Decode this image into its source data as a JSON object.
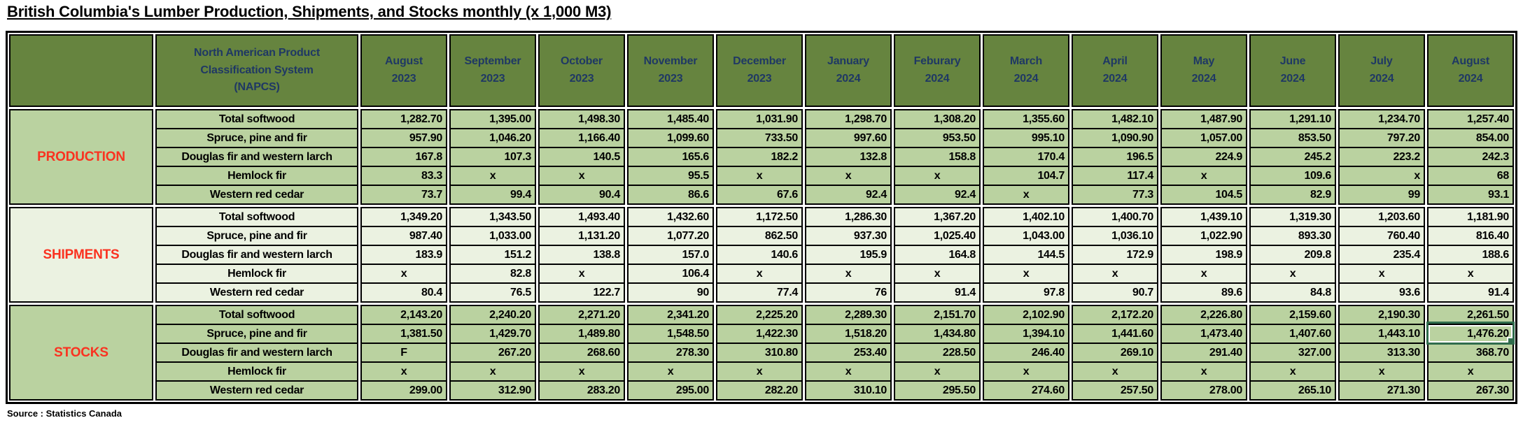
{
  "title": "British Columbia's Lumber Production, Shipments, and Stocks monthly (x 1,000 M3)",
  "source": "Source : Statistics Canada",
  "colors": {
    "header_olive": "#66843F",
    "row_green": "#BAD2A0",
    "row_pale": "#EBF2E1",
    "header_text_navy": "#1F3864",
    "section_label_red": "#FA3220",
    "selection_green": "#2F6C4C",
    "border_black": "#000000"
  },
  "table": {
    "napcs_header": [
      "North American Product",
      "Classification System",
      "(NAPCS)"
    ],
    "months": [
      {
        "month": "August",
        "year": "2023"
      },
      {
        "month": "September",
        "year": "2023"
      },
      {
        "month": "October",
        "year": "2023"
      },
      {
        "month": "November",
        "year": "2023"
      },
      {
        "month": "December",
        "year": "2023"
      },
      {
        "month": "January",
        "year": "2024"
      },
      {
        "month": "Feburary",
        "year": "2024"
      },
      {
        "month": "March",
        "year": "2024"
      },
      {
        "month": "April",
        "year": "2024"
      },
      {
        "month": "May",
        "year": "2024"
      },
      {
        "month": "June",
        "year": "2024"
      },
      {
        "month": "July",
        "year": "2024"
      },
      {
        "month": "August",
        "year": "2024"
      }
    ],
    "sections": [
      {
        "label": "PRODUCTION",
        "shade": "green",
        "rows": [
          {
            "label": "Total softwood",
            "values": [
              "1,282.70",
              "1,395.00",
              "1,498.30",
              "1,485.40",
              "1,031.90",
              "1,298.70",
              "1,308.20",
              "1,355.60",
              "1,482.10",
              "1,487.90",
              "1,291.10",
              "1,234.70",
              "1,257.40"
            ]
          },
          {
            "label": "Spruce, pine and fir",
            "values": [
              "957.90",
              "1,046.20",
              "1,166.40",
              "1,099.60",
              "733.50",
              "997.60",
              "953.50",
              "995.10",
              "1,090.90",
              "1,057.00",
              "853.50",
              "797.20",
              "854.00"
            ]
          },
          {
            "label": "Douglas fir and western larch",
            "values": [
              "167.8",
              "107.3",
              "140.5",
              "165.6",
              "182.2",
              "132.8",
              "158.8",
              "170.4",
              "196.5",
              "224.9",
              "245.2",
              "223.2",
              "242.3"
            ]
          },
          {
            "label": "Hemlock fir",
            "values": [
              "83.3",
              "x",
              "x",
              "95.5",
              "x",
              "x",
              "x",
              "104.7",
              "117.4",
              "x",
              "109.6",
              "x",
              "68"
            ]
          },
          {
            "label": "Western red cedar",
            "values": [
              "73.7",
              "99.4",
              "90.4",
              "86.6",
              "67.6",
              "92.4",
              "92.4",
              "x",
              "77.3",
              "104.5",
              "82.9",
              "99",
              "93.1"
            ]
          }
        ]
      },
      {
        "label": "SHIPMENTS",
        "shade": "pale",
        "rows": [
          {
            "label": "Total softwood",
            "values": [
              "1,349.20",
              "1,343.50",
              "1,493.40",
              "1,432.60",
              "1,172.50",
              "1,286.30",
              "1,367.20",
              "1,402.10",
              "1,400.70",
              "1,439.10",
              "1,319.30",
              "1,203.60",
              "1,181.90"
            ]
          },
          {
            "label": "Spruce, pine and fir",
            "values": [
              "987.40",
              "1,033.00",
              "1,131.20",
              "1,077.20",
              "862.50",
              "937.30",
              "1,025.40",
              "1,043.00",
              "1,036.10",
              "1,022.90",
              "893.30",
              "760.40",
              "816.40"
            ]
          },
          {
            "label": "Douglas fir and western larch",
            "values": [
              "183.9",
              "151.2",
              "138.8",
              "157.0",
              "140.6",
              "195.9",
              "164.8",
              "144.5",
              "172.9",
              "198.9",
              "209.8",
              "235.4",
              "188.6"
            ]
          },
          {
            "label": "Hemlock fir",
            "values": [
              "x",
              "82.8",
              "x",
              "106.4",
              "x",
              "x",
              "x",
              "x",
              "x",
              "x",
              "x",
              "x",
              "x"
            ]
          },
          {
            "label": "Western red cedar",
            "values": [
              "80.4",
              "76.5",
              "122.7",
              "90",
              "77.4",
              "76",
              "91.4",
              "97.8",
              "90.7",
              "89.6",
              "84.8",
              "93.6",
              "91.4"
            ]
          }
        ]
      },
      {
        "label": "STOCKS",
        "shade": "green",
        "rows": [
          {
            "label": "Total softwood",
            "values": [
              "2,143.20",
              "2,240.20",
              "2,271.20",
              "2,341.20",
              "2,225.20",
              "2,289.30",
              "2,151.70",
              "2,102.90",
              "2,172.20",
              "2,226.80",
              "2,159.60",
              "2,190.30",
              "2,261.50"
            ]
          },
          {
            "label": "Spruce, pine and fir",
            "values": [
              "1,381.50",
              "1,429.70",
              "1,489.80",
              "1,548.50",
              "1,422.30",
              "1,518.20",
              "1,434.80",
              "1,394.10",
              "1,441.60",
              "1,473.40",
              "1,407.60",
              "1,443.10",
              "1,476.20"
            ]
          },
          {
            "label": "Douglas fir and western larch",
            "values": [
              "F",
              "267.20",
              "268.60",
              "278.30",
              "310.80",
              "253.40",
              "228.50",
              "246.40",
              "269.10",
              "291.40",
              "327.00",
              "313.30",
              "368.70"
            ]
          },
          {
            "label": "Hemlock fir",
            "values": [
              "x",
              "x",
              "x",
              "x",
              "x",
              "x",
              "x",
              "x",
              "x",
              "x",
              "x",
              "x",
              "x"
            ]
          },
          {
            "label": "Western red cedar",
            "values": [
              "299.00",
              "312.90",
              "283.20",
              "295.00",
              "282.20",
              "310.10",
              "295.50",
              "274.60",
              "257.50",
              "278.00",
              "265.10",
              "271.30",
              "267.30"
            ]
          }
        ]
      }
    ],
    "align_overrides": [
      {
        "section_index": 0,
        "row_index": 3,
        "col_index": 11,
        "align": "right"
      }
    ],
    "selected_cell": {
      "section_index": 2,
      "row_index": 1,
      "col_index": 12,
      "value": "1,476.20"
    }
  }
}
